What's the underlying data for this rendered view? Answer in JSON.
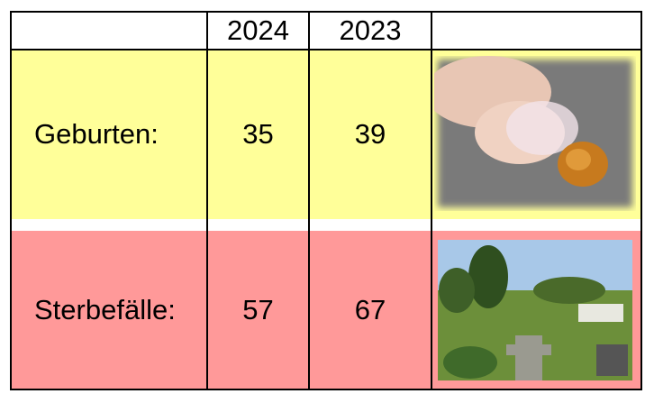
{
  "table": {
    "columns": [
      "2024",
      "2023"
    ],
    "rows": [
      [
        "Geburten:",
        35,
        39
      ],
      [
        "Sterbefälle:",
        57,
        67
      ]
    ]
  }
}
